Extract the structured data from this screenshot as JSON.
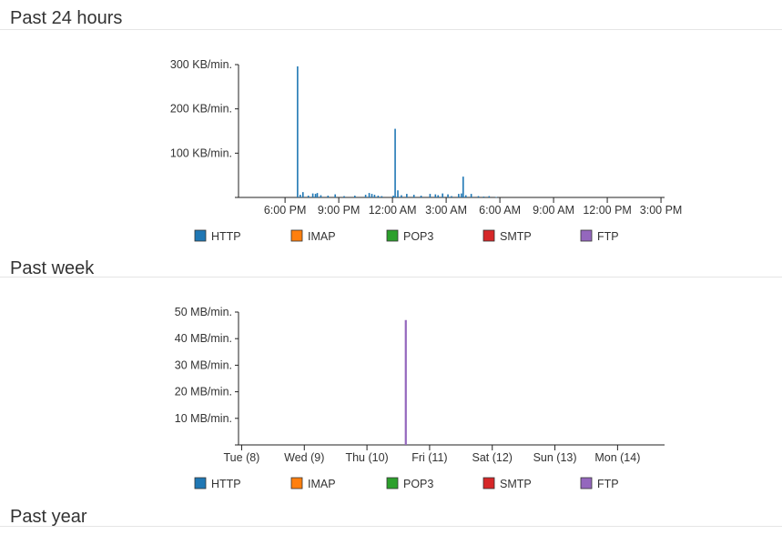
{
  "sections": {
    "past_24_hours": {
      "title": "Past 24 hours"
    },
    "past_week": {
      "title": "Past week"
    },
    "past_year": {
      "title": "Past year"
    }
  },
  "legend": [
    {
      "label": "HTTP",
      "color": "#1f77b4"
    },
    {
      "label": "IMAP",
      "color": "#ff7f0e"
    },
    {
      "label": "POP3",
      "color": "#2ca02c"
    },
    {
      "label": "SMTP",
      "color": "#d62728"
    },
    {
      "label": "FTP",
      "color": "#9467bd"
    }
  ],
  "chart_data": [
    {
      "type": "bar",
      "title": "Past 24 hours",
      "ylabel": "KB/min.",
      "ylim": [
        0,
        300
      ],
      "xlim": [
        15.4,
        39.2
      ],
      "yticks": [
        {
          "value": 0,
          "label": ""
        },
        {
          "value": 100,
          "label": "100 KB/min."
        },
        {
          "value": 200,
          "label": "200 KB/min."
        },
        {
          "value": 300,
          "label": "300 KB/min."
        }
      ],
      "xticks": [
        {
          "value": 18,
          "label": "6:00 PM"
        },
        {
          "value": 21,
          "label": "9:00 PM"
        },
        {
          "value": 24,
          "label": "12:00 AM"
        },
        {
          "value": 27,
          "label": "3:00 AM"
        },
        {
          "value": 30,
          "label": "6:00 AM"
        },
        {
          "value": 33,
          "label": "9:00 AM"
        },
        {
          "value": 36,
          "label": "12:00 PM"
        },
        {
          "value": 39,
          "label": "3:00 PM"
        }
      ],
      "series": [
        {
          "name": "HTTP",
          "points": [
            [
              18.7,
              296
            ],
            [
              18.85,
              6
            ],
            [
              19.0,
              12
            ],
            [
              19.3,
              4
            ],
            [
              19.55,
              9
            ],
            [
              19.7,
              8
            ],
            [
              19.8,
              10
            ],
            [
              20.0,
              5
            ],
            [
              20.4,
              4
            ],
            [
              20.8,
              7
            ],
            [
              21.3,
              3
            ],
            [
              21.9,
              4
            ],
            [
              22.5,
              6
            ],
            [
              22.7,
              10
            ],
            [
              22.85,
              8
            ],
            [
              23.0,
              6
            ],
            [
              23.2,
              4
            ],
            [
              23.4,
              3
            ],
            [
              24.05,
              4
            ],
            [
              24.15,
              155
            ],
            [
              24.3,
              16
            ],
            [
              24.5,
              5
            ],
            [
              24.8,
              8
            ],
            [
              25.2,
              6
            ],
            [
              25.6,
              4
            ],
            [
              26.1,
              8
            ],
            [
              26.4,
              7
            ],
            [
              26.55,
              5
            ],
            [
              26.8,
              9
            ],
            [
              27.1,
              7
            ],
            [
              27.3,
              3
            ],
            [
              27.7,
              8
            ],
            [
              27.85,
              9
            ],
            [
              27.95,
              47
            ],
            [
              28.1,
              5
            ],
            [
              28.4,
              8
            ],
            [
              28.8,
              3
            ],
            [
              29.1,
              2
            ],
            [
              29.4,
              3
            ],
            [
              29.8,
              1
            ]
          ]
        },
        {
          "name": "IMAP",
          "points": []
        },
        {
          "name": "POP3",
          "points": []
        },
        {
          "name": "SMTP",
          "points": []
        },
        {
          "name": "FTP",
          "points": []
        }
      ]
    },
    {
      "type": "bar",
      "title": "Past week",
      "ylabel": "MB/min.",
      "ylim": [
        0,
        50
      ],
      "xlim": [
        7.95,
        14.75
      ],
      "yticks": [
        {
          "value": 0,
          "label": ""
        },
        {
          "value": 10,
          "label": "10 MB/min."
        },
        {
          "value": 20,
          "label": "20 MB/min."
        },
        {
          "value": 30,
          "label": "30 MB/min."
        },
        {
          "value": 40,
          "label": "40 MB/min."
        },
        {
          "value": 50,
          "label": "50 MB/min."
        }
      ],
      "xticks": [
        {
          "value": 8,
          "label": "Tue (8)"
        },
        {
          "value": 9,
          "label": "Wed (9)"
        },
        {
          "value": 10,
          "label": "Thu (10)"
        },
        {
          "value": 11,
          "label": "Fri (11)"
        },
        {
          "value": 12,
          "label": "Sat (12)"
        },
        {
          "value": 13,
          "label": "Sun (13)"
        },
        {
          "value": 14,
          "label": "Mon (14)"
        }
      ],
      "series": [
        {
          "name": "HTTP",
          "points": []
        },
        {
          "name": "IMAP",
          "points": []
        },
        {
          "name": "POP3",
          "points": []
        },
        {
          "name": "SMTP",
          "points": []
        },
        {
          "name": "FTP",
          "points": [
            [
              10.62,
              47
            ]
          ]
        }
      ]
    }
  ]
}
